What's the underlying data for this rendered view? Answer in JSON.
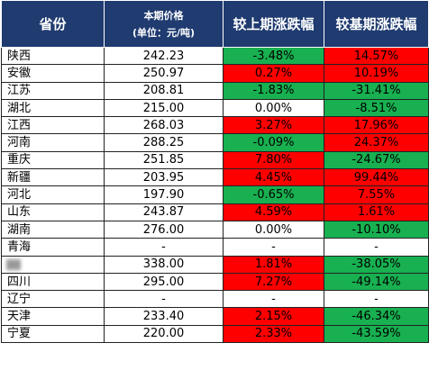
{
  "header": {
    "province": "省份",
    "price_line1": "本期价格",
    "price_line2": "(单位：元/吨)",
    "mom": "较上期涨跌幅",
    "yoy": "较基期涨跌幅"
  },
  "rows": [
    {
      "province": "陕西",
      "price": "242.23",
      "mom": "-3.48%",
      "mom_dir": "down",
      "yoy": "14.57%",
      "yoy_dir": "up"
    },
    {
      "province": "安徽",
      "price": "250.97",
      "mom": "0.27%",
      "mom_dir": "up",
      "yoy": "10.19%",
      "yoy_dir": "up"
    },
    {
      "province": "江苏",
      "price": "208.81",
      "mom": "-1.83%",
      "mom_dir": "down",
      "yoy": "-31.41%",
      "yoy_dir": "down"
    },
    {
      "province": "湖北",
      "price": "215.00",
      "mom": "0.00%",
      "mom_dir": "flat",
      "yoy": "-8.51%",
      "yoy_dir": "down"
    },
    {
      "province": "江西",
      "price": "268.03",
      "mom": "3.27%",
      "mom_dir": "up",
      "yoy": "17.96%",
      "yoy_dir": "up"
    },
    {
      "province": "河南",
      "price": "288.25",
      "mom": "-0.09%",
      "mom_dir": "down",
      "yoy": "24.37%",
      "yoy_dir": "up"
    },
    {
      "province": "重庆",
      "price": "251.85",
      "mom": "7.80%",
      "mom_dir": "up",
      "yoy": "-24.67%",
      "yoy_dir": "down"
    },
    {
      "province": "新疆",
      "price": "203.95",
      "mom": "4.45%",
      "mom_dir": "up",
      "yoy": "99.44%",
      "yoy_dir": "up"
    },
    {
      "province": "河北",
      "price": "197.90",
      "mom": "-0.65%",
      "mom_dir": "down",
      "yoy": "7.55%",
      "yoy_dir": "up"
    },
    {
      "province": "山东",
      "price": "243.87",
      "mom": "4.59%",
      "mom_dir": "up",
      "yoy": "1.61%",
      "yoy_dir": "up"
    },
    {
      "province": "湖南",
      "price": "276.00",
      "mom": "0.00%",
      "mom_dir": "flat",
      "yoy": "-10.10%",
      "yoy_dir": "down"
    },
    {
      "province": "青海",
      "price": "-",
      "mom": "-",
      "mom_dir": "flat",
      "yoy": "-",
      "yoy_dir": "flat"
    },
    {
      "province": "",
      "price": "338.00",
      "mom": "1.81%",
      "mom_dir": "up",
      "yoy": "-38.05%",
      "yoy_dir": "down",
      "province_obscured": true
    },
    {
      "province": "四川",
      "price": "295.00",
      "mom": "7.27%",
      "mom_dir": "up",
      "yoy": "-49.14%",
      "yoy_dir": "down"
    },
    {
      "province": "辽宁",
      "price": "-",
      "mom": "-",
      "mom_dir": "flat",
      "yoy": "-",
      "yoy_dir": "flat"
    },
    {
      "province": "天津",
      "price": "233.40",
      "mom": "2.15%",
      "mom_dir": "up",
      "yoy": "-46.34%",
      "yoy_dir": "down"
    },
    {
      "province": "宁夏",
      "price": "220.00",
      "mom": "2.33%",
      "mom_dir": "up",
      "yoy": "-43.59%",
      "yoy_dir": "down"
    }
  ],
  "colors": {
    "header_bg": "#1f3b70",
    "up": "#fe0000",
    "down": "#18b050"
  }
}
